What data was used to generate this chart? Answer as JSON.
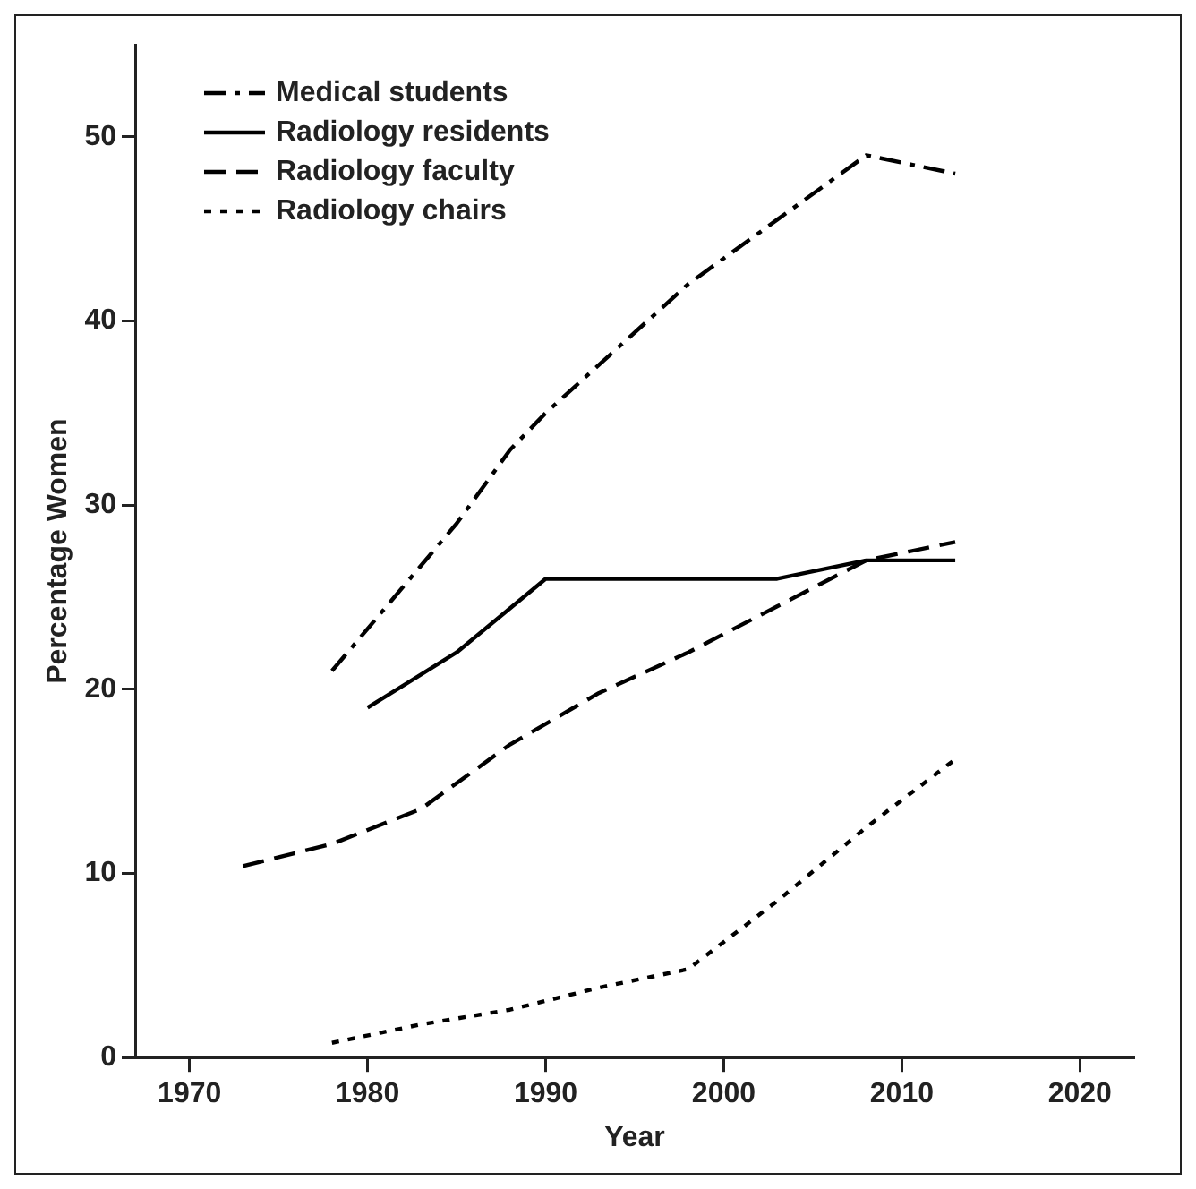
{
  "chart_data": {
    "type": "line",
    "xlabel": "Year",
    "ylabel": "Percentage Women",
    "xlim": [
      1967,
      2023
    ],
    "xticks": [
      1970,
      1980,
      1990,
      2000,
      2010,
      2020
    ],
    "ylim": [
      0,
      55
    ],
    "yticks": [
      0,
      10,
      20,
      30,
      40,
      50
    ],
    "grid": false,
    "legend": "top left",
    "marker": "none",
    "series": [
      {
        "name": "Medical students",
        "color": "#000000",
        "line_style": "dashdot",
        "x": [
          1978,
          1985,
          1988,
          1990,
          1998,
          2003,
          2008,
          2013
        ],
        "values": [
          21,
          29,
          33,
          35,
          42,
          45.5,
          49,
          48
        ]
      },
      {
        "name": "Radiology residents",
        "color": "#000000",
        "line_style": "solid",
        "x": [
          1980,
          1985,
          1990,
          2003,
          2008,
          2013
        ],
        "values": [
          19,
          22,
          26,
          26,
          27,
          27
        ]
      },
      {
        "name": "Radiology faculty",
        "color": "#000000",
        "line_style": "dashed",
        "x": [
          1973,
          1978,
          1983,
          1988,
          1993,
          1998,
          2003,
          2008,
          2013
        ],
        "values": [
          10.4,
          11.6,
          13.5,
          17,
          19.8,
          22,
          24.5,
          27,
          28
        ]
      },
      {
        "name": "Radiology chairs",
        "color": "#000000",
        "line_style": "dotted",
        "x": [
          1978,
          1983,
          1988,
          1993,
          1998,
          2003,
          2008,
          2013
        ],
        "values": [
          0.8,
          1.8,
          2.6,
          3.8,
          4.8,
          8.5,
          12.5,
          16.2
        ]
      }
    ]
  }
}
